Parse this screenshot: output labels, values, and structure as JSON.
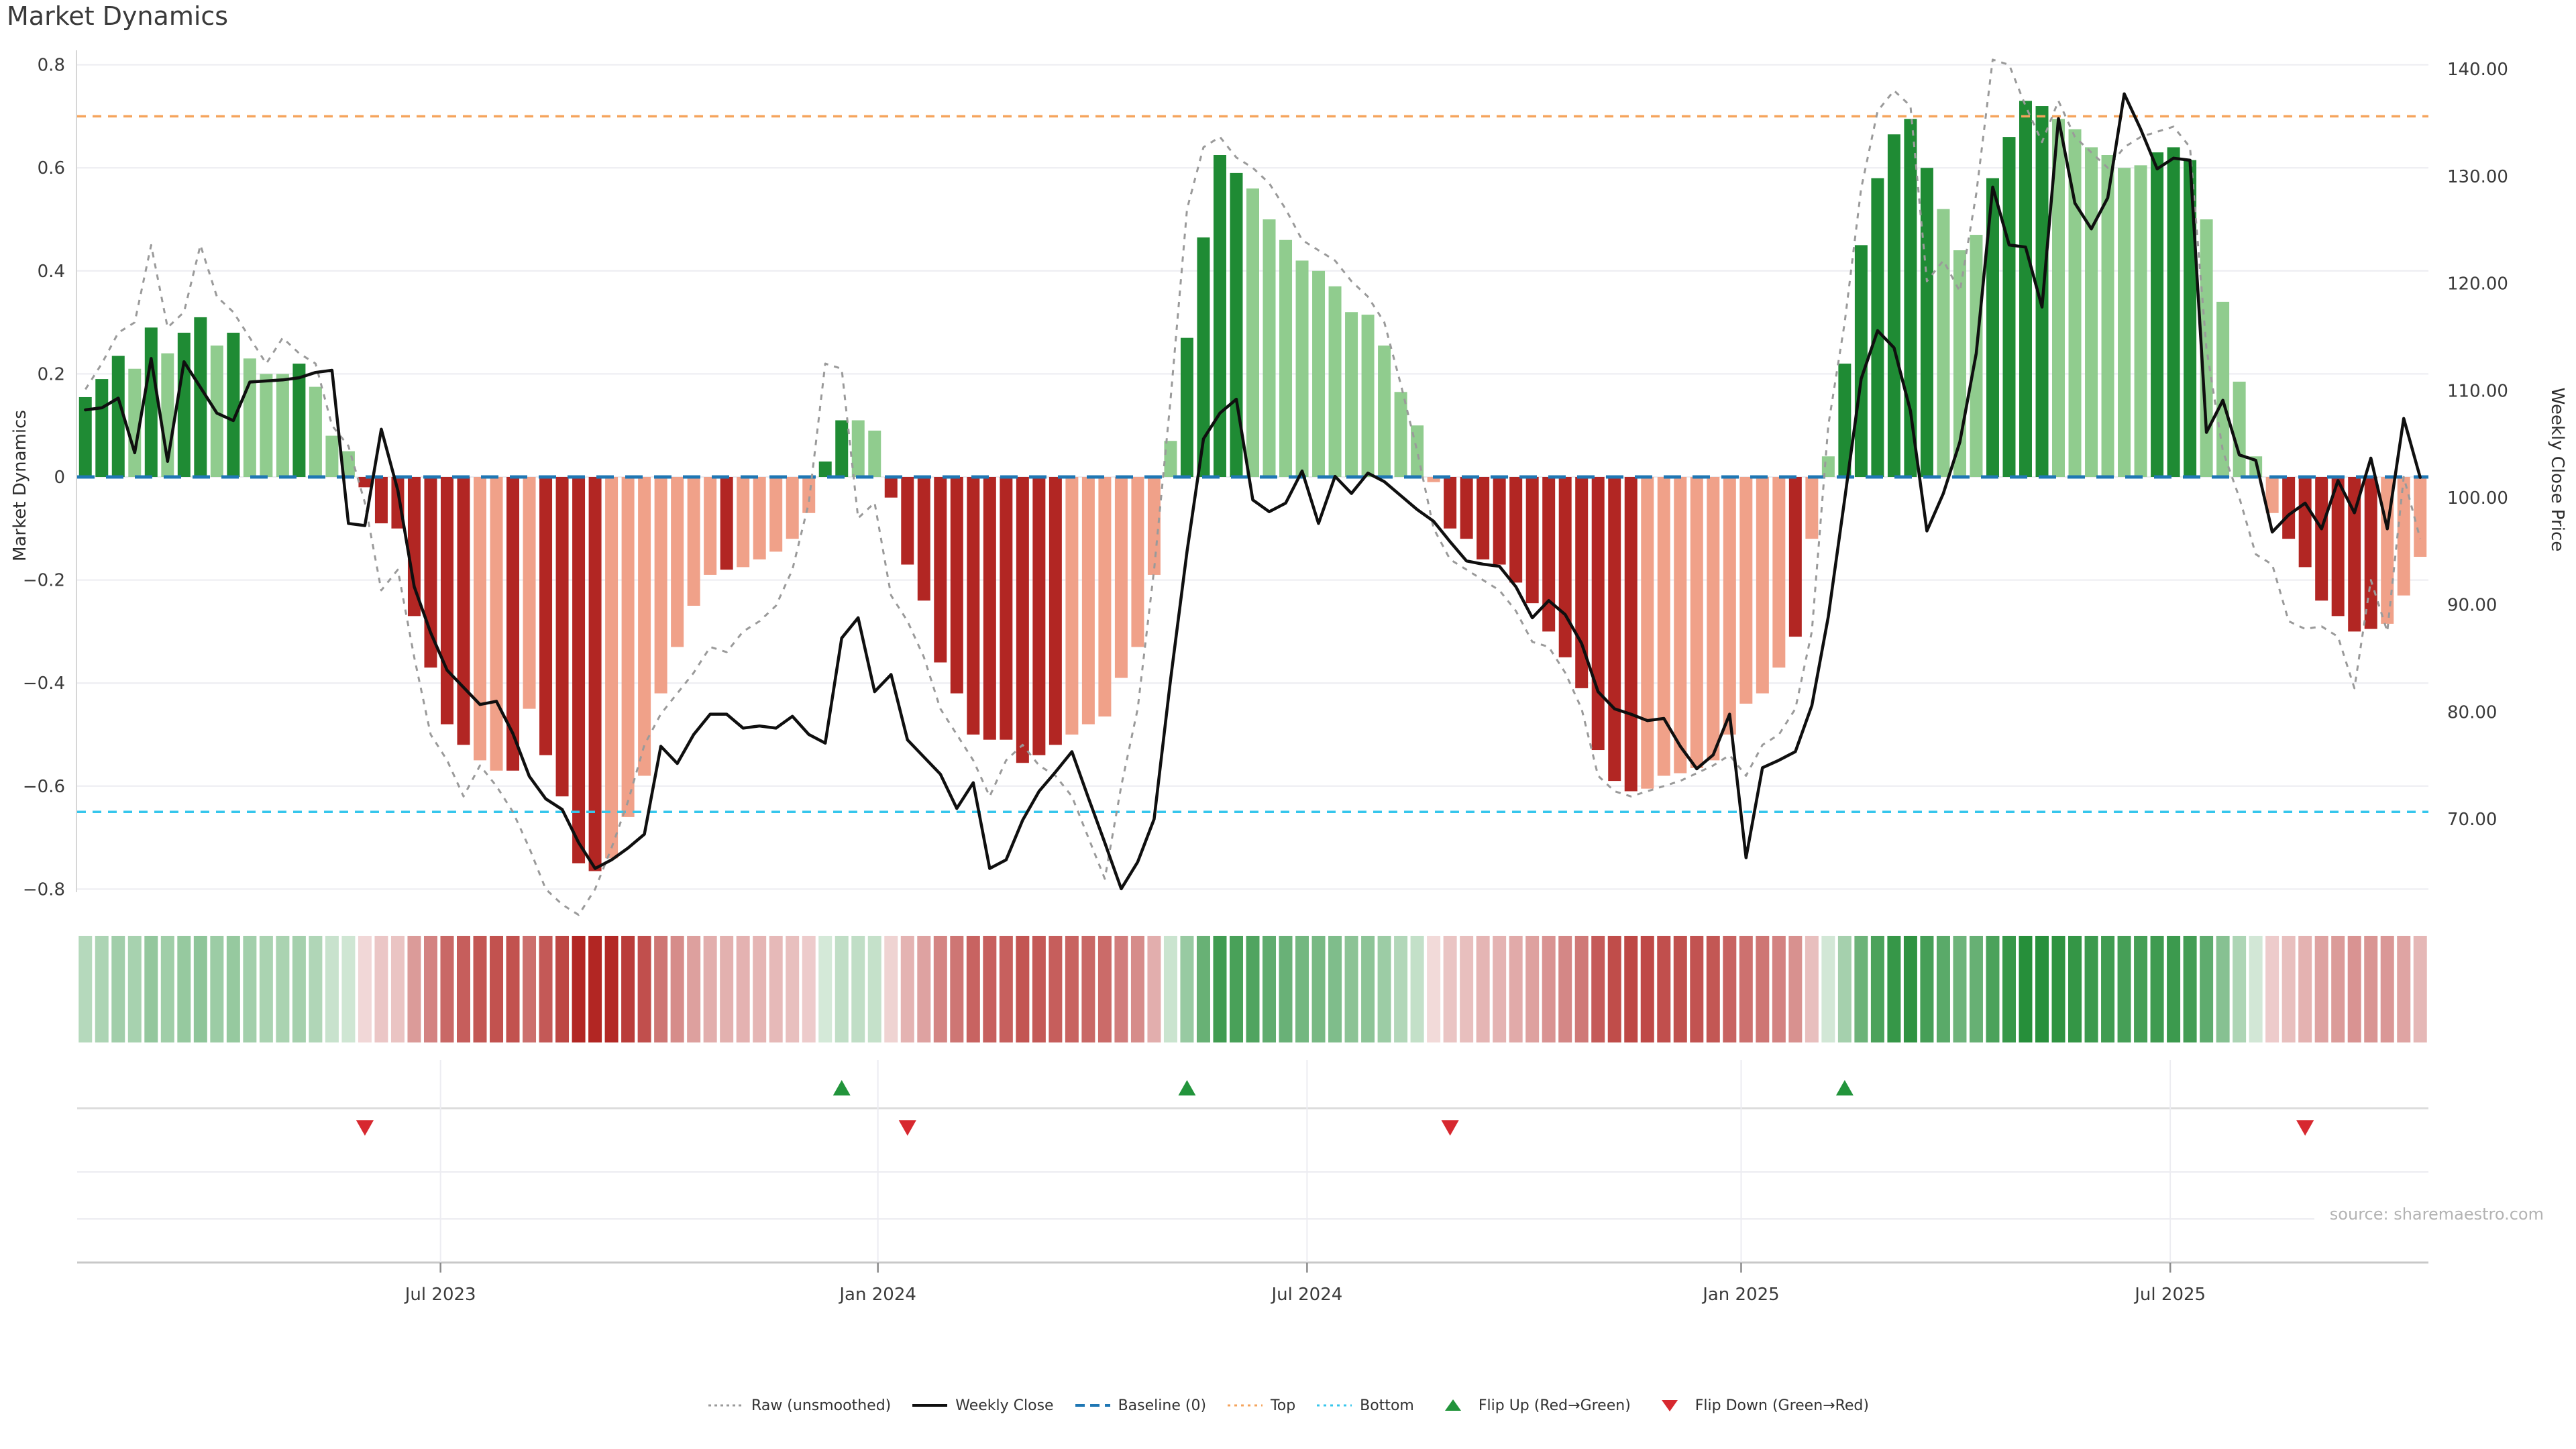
{
  "page": {
    "title": "Market Dynamics",
    "source": "source: sharemaestro.com"
  },
  "colors": {
    "bar_green_strong": "#1f8b34",
    "bar_green_soft": "#90cc8e",
    "bar_red_strong": "#b22623",
    "bar_red_soft": "#f0a189",
    "price_line": "#0f0f0f",
    "raw_line": "#9a9a9a",
    "baseline_line": "#1f77b4",
    "top_line": "#f5a45c",
    "bottom_line": "#36c6ec",
    "flip_up": "#22943b",
    "flip_down": "#d7282f",
    "grid": "#ececf1",
    "panel_line": "#dcdcdc",
    "axis_line": "#c8c8c8",
    "tick_text": "#3a3a3a",
    "strip_green_base": [
      33,
      140,
      53
    ],
    "strip_red_base": [
      178,
      38,
      35
    ]
  },
  "chart_data": {
    "type": "bar",
    "title": "Market Dynamics",
    "xlabel": "",
    "ylabel_left": "Market Dynamics",
    "ylabel_right": "Weekly Close Price",
    "ylim_left": [
      -0.8,
      0.8
    ],
    "ylim_right": [
      70,
      140
    ],
    "grid": true,
    "legend_position": "bottom",
    "baseline": 0,
    "top_threshold": 0.7,
    "bottom_threshold": -0.65,
    "weeks": 143,
    "x_ticks": [
      {
        "label": "Jul 2023",
        "week": 22.6
      },
      {
        "label": "Jan 2024",
        "week": 49.2
      },
      {
        "label": "Jul 2024",
        "week": 75.3
      },
      {
        "label": "Jan 2025",
        "week": 101.7
      },
      {
        "label": "Jul 2025",
        "week": 127.8
      }
    ],
    "y_left_ticks": [
      "0.8",
      "0.6",
      "0.4",
      "0.2",
      "0",
      "−0.2",
      "−0.4",
      "−0.6",
      "−0.8"
    ],
    "y_left_tick_values": [
      0.8,
      0.6,
      0.4,
      0.2,
      0,
      -0.2,
      -0.4,
      -0.6,
      -0.8
    ],
    "y_right_ticks": [
      "140.00",
      "130.00",
      "120.00",
      "110.00",
      "100.00",
      "90.00",
      "80.00",
      "70.00"
    ],
    "y_right_tick_values": [
      140,
      130,
      120,
      110,
      100,
      90,
      80,
      70
    ],
    "oscillator": [
      0.155,
      0.19,
      0.235,
      0.21,
      0.29,
      0.24,
      0.28,
      0.31,
      0.255,
      0.28,
      0.23,
      0.2,
      0.2,
      0.22,
      0.175,
      0.08,
      0.05,
      -0.02,
      -0.09,
      -0.1,
      -0.27,
      -0.37,
      -0.48,
      -0.52,
      -0.55,
      -0.57,
      -0.57,
      -0.45,
      -0.54,
      -0.62,
      -0.75,
      -0.765,
      -0.74,
      -0.66,
      -0.58,
      -0.42,
      -0.33,
      -0.25,
      -0.19,
      -0.18,
      -0.175,
      -0.16,
      -0.145,
      -0.12,
      -0.07,
      0.03,
      0.11,
      0.11,
      0.09,
      -0.04,
      -0.17,
      -0.24,
      -0.36,
      -0.42,
      -0.5,
      -0.51,
      -0.51,
      -0.555,
      -0.54,
      -0.52,
      -0.5,
      -0.48,
      -0.465,
      -0.39,
      -0.33,
      -0.19,
      0.07,
      0.27,
      0.465,
      0.625,
      0.59,
      0.56,
      0.5,
      0.46,
      0.42,
      0.4,
      0.37,
      0.32,
      0.315,
      0.255,
      0.165,
      0.1,
      -0.01,
      -0.1,
      -0.12,
      -0.16,
      -0.17,
      -0.205,
      -0.245,
      -0.3,
      -0.35,
      -0.41,
      -0.53,
      -0.59,
      -0.61,
      -0.605,
      -0.58,
      -0.575,
      -0.565,
      -0.55,
      -0.5,
      -0.44,
      -0.42,
      -0.37,
      -0.31,
      -0.12,
      0.04,
      0.22,
      0.45,
      0.58,
      0.665,
      0.695,
      0.6,
      0.52,
      0.44,
      0.47,
      0.58,
      0.66,
      0.73,
      0.72,
      0.695,
      0.675,
      0.64,
      0.625,
      0.6,
      0.605,
      0.63,
      0.64,
      0.615,
      0.5,
      0.34,
      0.185,
      0.04,
      -0.07,
      -0.12,
      -0.175,
      -0.24,
      -0.27,
      -0.3,
      -0.295,
      -0.285,
      -0.23,
      -0.155
    ],
    "tone": "dddldlddldllldllldddddddlldlddddllllllldlllllddlldddddddddddlllllllddddllllllllllllddddddddddddklllllllldllddddddlllddddlllllldddlllllddddddllll",
    "price": [
      108.2,
      108.4,
      109.3,
      104.2,
      113.0,
      103.4,
      112.7,
      110.3,
      107.9,
      107.2,
      110.8,
      110.9,
      111.0,
      111.2,
      111.7,
      111.9,
      97.6,
      97.4,
      106.4,
      100.7,
      91.7,
      87.4,
      83.9,
      82.3,
      80.7,
      81.0,
      78.0,
      74.0,
      71.9,
      70.9,
      67.8,
      65.4,
      66.2,
      67.3,
      68.6,
      76.8,
      75.2,
      77.9,
      79.8,
      79.8,
      78.5,
      78.7,
      78.5,
      79.6,
      77.9,
      77.1,
      86.9,
      88.8,
      81.9,
      83.5,
      77.4,
      75.8,
      74.2,
      71.0,
      73.4,
      65.4,
      66.2,
      69.9,
      72.6,
      74.4,
      76.3,
      72.0,
      67.8,
      63.5,
      66.0,
      70.0,
      83.0,
      95.0,
      105.5,
      107.9,
      109.2,
      99.8,
      98.7,
      99.5,
      102.5,
      97.6,
      102.0,
      100.4,
      102.3,
      101.5,
      100.2,
      98.9,
      97.8,
      95.9,
      94.1,
      93.8,
      93.6,
      91.7,
      88.8,
      90.4,
      89.1,
      86.4,
      81.9,
      80.3,
      79.8,
      79.2,
      79.4,
      76.8,
      74.7,
      76.0,
      79.8,
      66.4,
      74.8,
      75.5,
      76.3,
      80.6,
      88.9,
      99.9,
      111.1,
      115.6,
      114.0,
      108.1,
      96.9,
      100.4,
      105.2,
      113.5,
      129.0,
      123.6,
      123.4,
      117.8,
      135.4,
      127.5,
      125.1,
      128.0,
      137.7,
      134.4,
      130.7,
      131.7,
      131.5,
      106.1,
      109.1,
      104.0,
      103.5,
      96.8,
      98.4,
      99.5,
      97.1,
      101.6,
      98.6,
      103.7,
      97.1,
      107.4,
      101.9
    ],
    "raw": [
      0.17,
      0.22,
      0.28,
      0.3,
      0.45,
      0.29,
      0.32,
      0.45,
      0.35,
      0.32,
      0.27,
      0.22,
      0.27,
      0.24,
      0.22,
      0.1,
      0.06,
      -0.05,
      -0.22,
      -0.18,
      -0.35,
      -0.5,
      -0.55,
      -0.62,
      -0.56,
      -0.6,
      -0.65,
      -0.72,
      -0.8,
      -0.83,
      -0.85,
      -0.8,
      -0.72,
      -0.63,
      -0.52,
      -0.46,
      -0.42,
      -0.38,
      -0.33,
      -0.34,
      -0.3,
      -0.28,
      -0.25,
      -0.18,
      -0.05,
      0.22,
      0.21,
      -0.08,
      -0.05,
      -0.23,
      -0.28,
      -0.35,
      -0.45,
      -0.5,
      -0.55,
      -0.62,
      -0.55,
      -0.52,
      -0.56,
      -0.58,
      -0.62,
      -0.7,
      -0.78,
      -0.6,
      -0.45,
      -0.18,
      0.15,
      0.52,
      0.64,
      0.66,
      0.62,
      0.6,
      0.57,
      0.52,
      0.46,
      0.44,
      0.42,
      0.38,
      0.35,
      0.3,
      0.18,
      0.05,
      -0.1,
      -0.16,
      -0.18,
      -0.2,
      -0.22,
      -0.26,
      -0.32,
      -0.33,
      -0.38,
      -0.45,
      -0.58,
      -0.61,
      -0.62,
      -0.61,
      -0.6,
      -0.59,
      -0.575,
      -0.56,
      -0.54,
      -0.58,
      -0.52,
      -0.5,
      -0.45,
      -0.3,
      0.1,
      0.3,
      0.56,
      0.71,
      0.75,
      0.72,
      0.38,
      0.42,
      0.36,
      0.55,
      0.81,
      0.8,
      0.72,
      0.65,
      0.73,
      0.66,
      0.63,
      0.6,
      0.64,
      0.66,
      0.67,
      0.68,
      0.64,
      0.25,
      0.05,
      -0.04,
      -0.15,
      -0.17,
      -0.28,
      -0.295,
      -0.29,
      -0.31,
      -0.41,
      -0.2,
      -0.3,
      0.0,
      -0.12
    ],
    "flip_up_weeks": [
      47,
      68,
      108
    ],
    "flip_down_weeks": [
      18,
      51,
      84,
      136
    ]
  },
  "legend": {
    "items": [
      {
        "key": "raw",
        "label": "Raw (unsmoothed)"
      },
      {
        "key": "close",
        "label": "Weekly Close"
      },
      {
        "key": "baseline",
        "label": "Baseline (0)"
      },
      {
        "key": "top",
        "label": "Top"
      },
      {
        "key": "bottom",
        "label": "Bottom"
      },
      {
        "key": "flipup",
        "label": "Flip Up (Red→Green)"
      },
      {
        "key": "flipdown",
        "label": "Flip Down (Green→Red)"
      }
    ]
  }
}
